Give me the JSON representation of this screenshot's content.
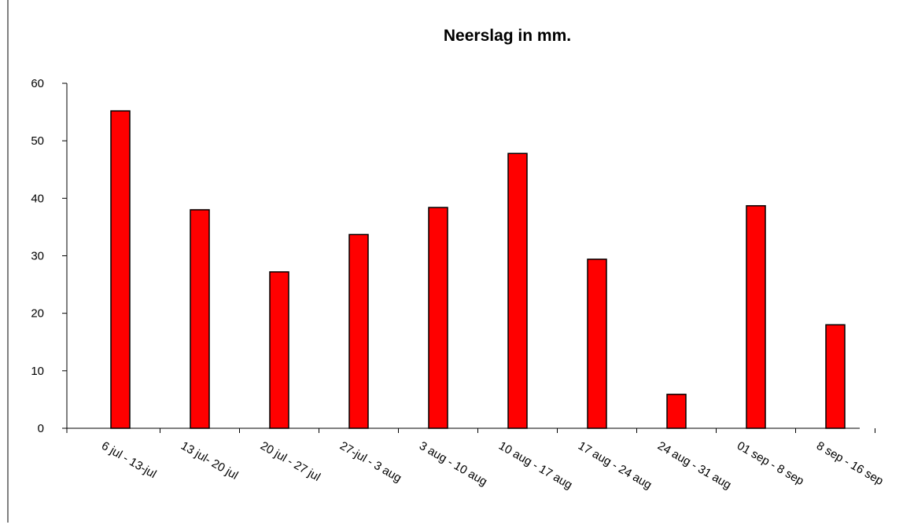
{
  "chart_data": {
    "type": "bar",
    "title": "Neerslag in mm.",
    "categories": [
      "6 jul - 13-jul",
      "13 jul- 20 jul",
      "20 jul - 27 jul",
      "27-jul - 3 aug",
      "3 aug - 10 aug",
      "10 aug - 17 aug",
      "17 aug - 24 aug",
      "24 aug - 31 aug",
      "01 sep - 8 sep",
      "8 sep - 16 sep"
    ],
    "values": [
      55.2,
      38.0,
      27.2,
      33.7,
      38.4,
      47.8,
      29.4,
      5.9,
      38.7,
      18.0
    ],
    "color": "#ff0000",
    "ylim": [
      0,
      60
    ],
    "yticks": [
      0,
      10,
      20,
      30,
      40,
      50,
      60
    ],
    "grid": false
  }
}
